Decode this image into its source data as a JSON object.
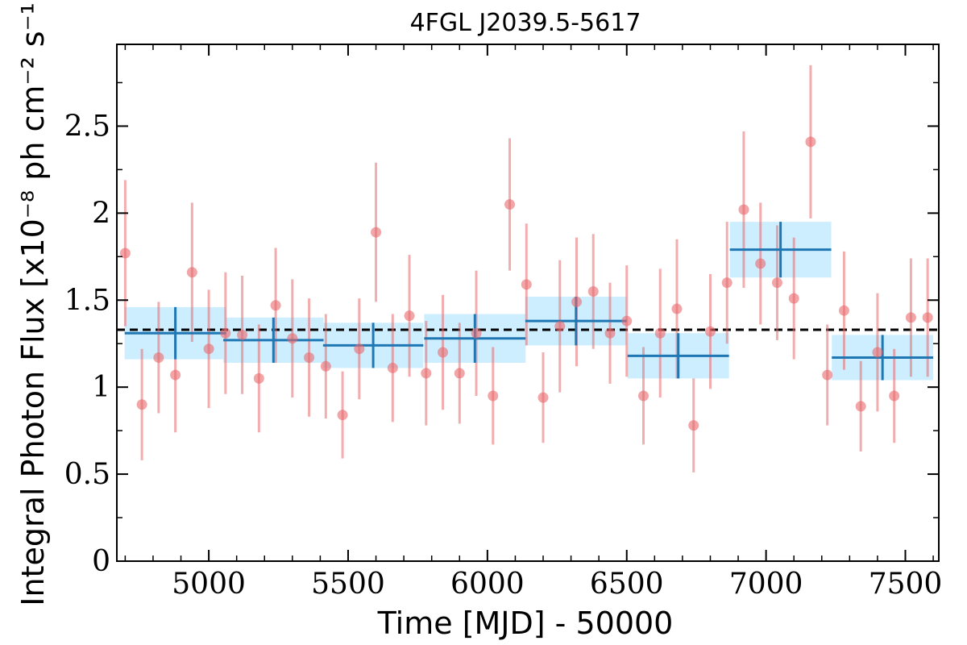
{
  "chart_data": {
    "type": "scatter",
    "title": "4FGL J2039.5-5617",
    "xlabel": "Time [MJD] - 50000",
    "ylabel": "Integral Photon Flux [x10⁻⁸ ph cm⁻² s⁻¹]",
    "xlim": [
      4670,
      7620
    ],
    "ylim": [
      0,
      2.97
    ],
    "x_ticks": [
      5000,
      5500,
      6000,
      6500,
      7000,
      7500
    ],
    "y_ticks": [
      0,
      0.5,
      1,
      1.5,
      2,
      2.5
    ],
    "y_tick_labels": [
      "0",
      "0.5",
      "1",
      "1.5",
      "2",
      "2.5"
    ],
    "mean_flux": 1.33,
    "colors": {
      "points": "#e8696c",
      "errorbars": "#e8696c",
      "bins": "#1f77b4",
      "bin_band": "#cdeeff",
      "mean_line": "#000000"
    },
    "series": [
      {
        "kind": "points_with_errorbars",
        "x": [
          4700,
          4760,
          4820,
          4880,
          4940,
          5000,
          5060,
          5120,
          5180,
          5240,
          5300,
          5360,
          5420,
          5480,
          5540,
          5600,
          5660,
          5720,
          5780,
          5840,
          5900,
          5960,
          6020,
          6080,
          6140,
          6200,
          6260,
          6320,
          6380,
          6440,
          6500,
          6560,
          6620,
          6680,
          6740,
          6800,
          6860,
          6920,
          6980,
          7040,
          7100,
          7160,
          7220,
          7280,
          7340,
          7400,
          7460,
          7520,
          7580
        ],
        "y": [
          1.77,
          0.9,
          1.17,
          1.07,
          1.66,
          1.22,
          1.31,
          1.3,
          1.05,
          1.47,
          1.28,
          1.17,
          1.12,
          0.84,
          1.22,
          1.89,
          1.11,
          1.41,
          1.08,
          1.2,
          1.08,
          1.31,
          0.95,
          2.05,
          1.59,
          0.94,
          1.35,
          1.49,
          1.55,
          1.31,
          1.38,
          0.95,
          1.31,
          1.45,
          0.78,
          1.32,
          1.6,
          2.02,
          1.71,
          1.6,
          1.51,
          2.41,
          1.07,
          1.44,
          0.89,
          1.2,
          0.95,
          1.4,
          1.4
        ],
        "yerr": [
          0.42,
          0.32,
          0.32,
          0.33,
          0.4,
          0.34,
          0.35,
          0.34,
          0.31,
          0.33,
          0.34,
          0.34,
          0.3,
          0.25,
          0.29,
          0.4,
          0.31,
          0.35,
          0.3,
          0.33,
          0.29,
          0.36,
          0.28,
          0.38,
          0.35,
          0.26,
          0.38,
          0.37,
          0.33,
          0.29,
          0.32,
          0.28,
          0.37,
          0.4,
          0.27,
          0.33,
          0.35,
          0.45,
          0.35,
          0.33,
          0.35,
          0.44,
          0.29,
          0.34,
          0.26,
          0.34,
          0.27,
          0.34,
          0.34
        ]
      },
      {
        "kind": "binned",
        "x": [
          4880,
          5232,
          5590,
          5955,
          6318,
          6685,
          7052,
          7418
        ],
        "xerr": [
          182,
          180,
          180,
          182,
          182,
          182,
          182,
          182
        ],
        "y": [
          1.31,
          1.27,
          1.24,
          1.28,
          1.38,
          1.18,
          1.79,
          1.17
        ],
        "yerr": [
          0.15,
          0.13,
          0.13,
          0.14,
          0.14,
          0.13,
          0.16,
          0.13
        ]
      }
    ]
  }
}
